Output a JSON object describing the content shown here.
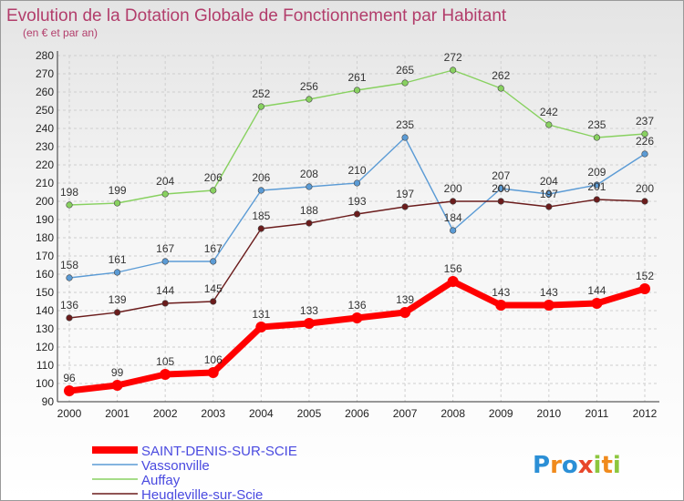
{
  "chart_data": {
    "type": "line",
    "title": "Evolution de la Dotation Globale de Fonctionnement par Habitant",
    "subtitle": "(en € et par an)",
    "x": [
      "2000",
      "2001",
      "2002",
      "2003",
      "2004",
      "2005",
      "2006",
      "2007",
      "2008",
      "2009",
      "2010",
      "2011",
      "2012"
    ],
    "ylim": [
      90,
      280
    ],
    "ytick_step": 10,
    "grid": true,
    "legend_position": "bottom-left",
    "series": [
      {
        "name": "SAINT-DENIS-SUR-SCIE",
        "color": "#ff0000",
        "values": [
          96,
          99,
          105,
          106,
          131,
          133,
          136,
          139,
          156,
          143,
          143,
          144,
          152
        ]
      },
      {
        "name": "Vassonville",
        "color": "#5b9bd5",
        "values": [
          158,
          161,
          167,
          167,
          206,
          208,
          210,
          235,
          184,
          207,
          204,
          209,
          226
        ]
      },
      {
        "name": "Auffay",
        "color": "#88d160",
        "values": [
          198,
          199,
          204,
          206,
          252,
          256,
          261,
          265,
          272,
          262,
          242,
          235,
          237
        ]
      },
      {
        "name": "Heugleville-sur-Scie",
        "color": "#6b1c1c",
        "values": [
          136,
          139,
          144,
          145,
          185,
          188,
          193,
          197,
          200,
          200,
          197,
          201,
          200
        ]
      }
    ]
  },
  "logo": {
    "text": "Proxiti"
  }
}
